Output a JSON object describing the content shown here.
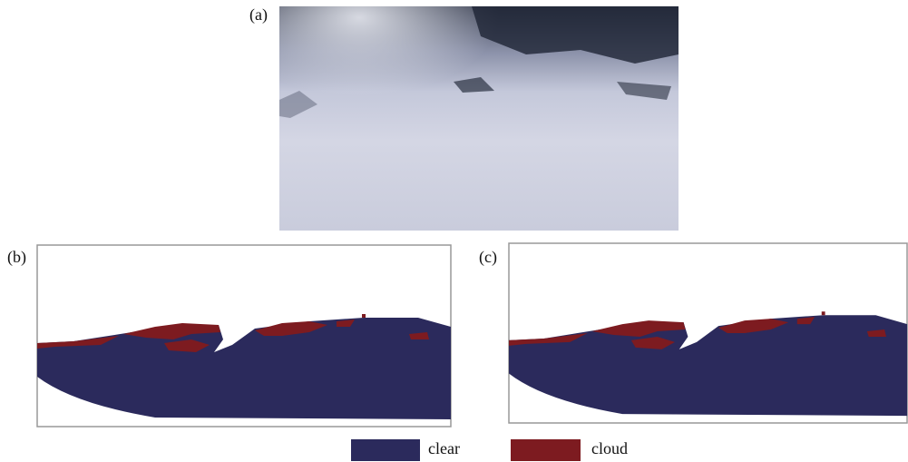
{
  "panels": [
    {
      "label": "(a)"
    },
    {
      "label": "(b)"
    },
    {
      "label": "(c)"
    }
  ],
  "legend": [
    {
      "label": "clear",
      "color": "#2b2a5c"
    },
    {
      "label": "cloud",
      "color": "#7d1b20"
    }
  ]
}
